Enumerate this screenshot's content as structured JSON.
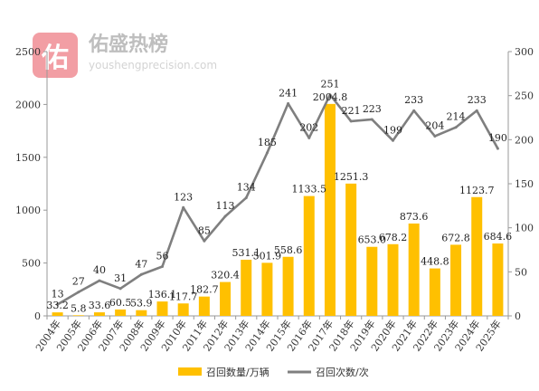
{
  "watermark": {
    "logo_char": "佑",
    "name": "佑盛热榜",
    "url": "youshengprecision.com"
  },
  "chart_data": {
    "type": "bar",
    "categories": [
      "2004年",
      "2005年",
      "2006年",
      "2007年",
      "2008年",
      "2009年",
      "2010年",
      "2011年",
      "2012年",
      "2013年",
      "2014年",
      "2015年",
      "2016年",
      "2017年",
      "2018年",
      "2019年",
      "2020年",
      "2021年",
      "2022年",
      "2023年",
      "2024年",
      "2025年"
    ],
    "series": [
      {
        "name": "召回数量/万辆",
        "type": "bar",
        "axis": "left",
        "color": "#FFC000",
        "values": [
          33.2,
          5.8,
          33.6,
          60.5,
          53.9,
          136.1,
          117.7,
          182.7,
          320.4,
          531.1,
          501.9,
          558.6,
          1133.5,
          2004.8,
          1251.3,
          653.0,
          678.2,
          873.6,
          448.8,
          672.8,
          1123.7,
          684.6
        ],
        "labels": [
          "33.2",
          "5.8",
          "33.6",
          "60.5",
          "53.9",
          "136.1",
          "117.7",
          "182.7",
          "320.4",
          "531.1",
          "501.9",
          "558.6",
          "1133.5",
          "2004.8",
          "1251.3",
          "653.0",
          "678.2",
          "873.6",
          "448.8",
          "672.8",
          "1123.7",
          "684.6"
        ]
      },
      {
        "name": "召回次数/次",
        "type": "line",
        "axis": "right",
        "color": "#7F7F7F",
        "values": [
          13,
          27,
          40,
          31,
          47,
          56,
          123,
          85,
          113,
          134,
          185,
          241,
          202,
          251,
          221,
          223,
          199,
          233,
          204,
          214,
          233,
          190
        ]
      }
    ],
    "y_left": {
      "ylim": [
        0,
        2500
      ],
      "ticks": [
        "0",
        "500",
        "1000",
        "1500",
        "2000",
        "2500"
      ]
    },
    "y_right": {
      "ylim": [
        0,
        300
      ],
      "ticks": [
        "0",
        "50",
        "100",
        "150",
        "200",
        "250",
        "300"
      ]
    },
    "grid": false,
    "legend": "bottom"
  }
}
